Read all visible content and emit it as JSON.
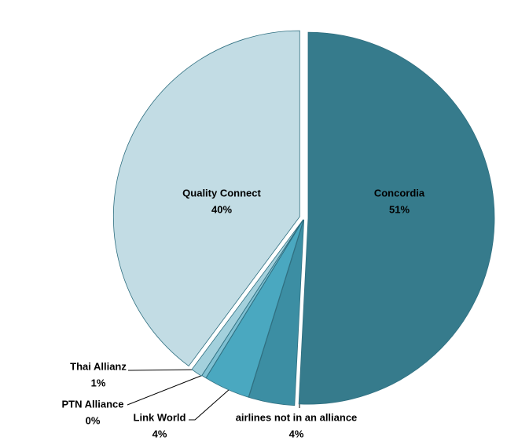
{
  "chart_data": {
    "type": "pie",
    "categories": [
      "Concordia",
      "airlines not in an alliance",
      "Link World",
      "PTN Alliance",
      "Thai Allianz",
      "Quality Connect"
    ],
    "values": [
      51,
      4,
      4,
      0.4,
      1,
      40
    ],
    "value_labels": [
      "51%",
      "4%",
      "4%",
      "0%",
      "1%",
      "40%"
    ],
    "colors": [
      "#367b8c",
      "#3c8ea3",
      "#4aa8c0",
      "#7fc0d2",
      "#a3d0dc",
      "#c2dce4"
    ]
  }
}
